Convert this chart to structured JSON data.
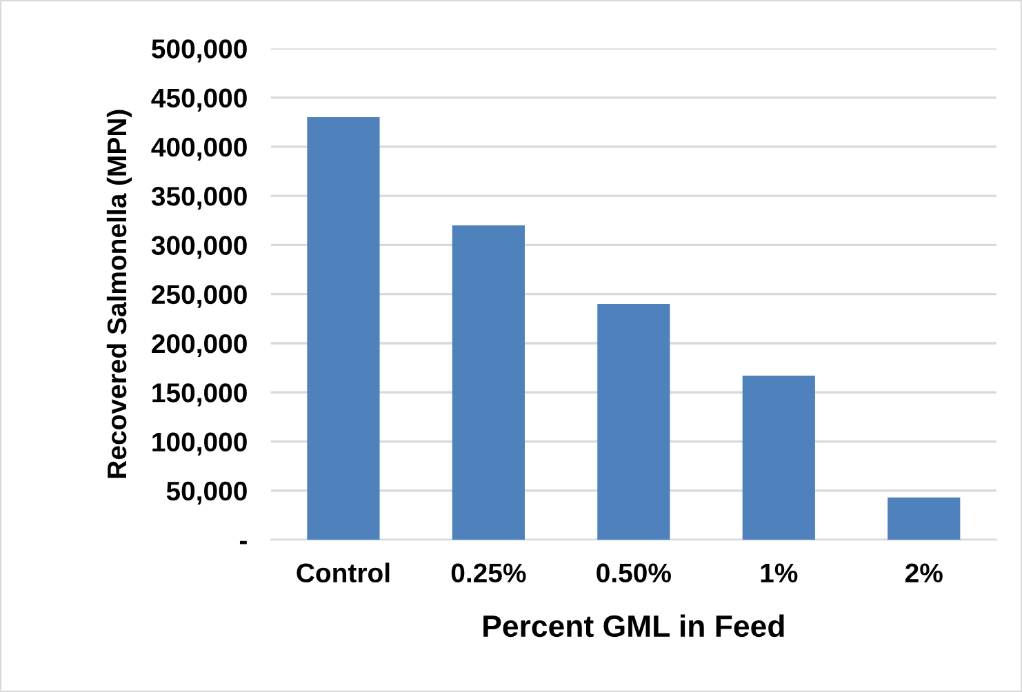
{
  "chart_data": {
    "type": "bar",
    "xlabel": "Percent GML in Feed",
    "ylabel": "Recovered Salmonella (MPN)",
    "categories": [
      "Control",
      "0.25%",
      "0.50%",
      "1%",
      "2%"
    ],
    "values": [
      430000,
      320000,
      240000,
      167000,
      43000
    ],
    "color": "#4f81bd",
    "ylim": [
      0,
      500000
    ],
    "yticks": [
      {
        "value": 0,
        "label": "-"
      },
      {
        "value": 50000,
        "label": "50,000"
      },
      {
        "value": 100000,
        "label": "100,000"
      },
      {
        "value": 150000,
        "label": "150,000"
      },
      {
        "value": 200000,
        "label": "200,000"
      },
      {
        "value": 250000,
        "label": "250,000"
      },
      {
        "value": 300000,
        "label": "300,000"
      },
      {
        "value": 350000,
        "label": "350,000"
      },
      {
        "value": 400000,
        "label": "400,000"
      },
      {
        "value": 450000,
        "label": "450,000"
      },
      {
        "value": 500000,
        "label": "500,000"
      }
    ],
    "grid": "y",
    "legend": false
  }
}
